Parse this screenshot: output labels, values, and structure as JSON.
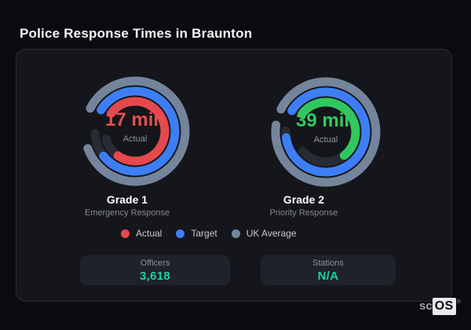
{
  "header": {
    "title": "Police Response Times in Braunton"
  },
  "chart_data": {
    "type": "gauge",
    "title": "Police Response Times in Braunton",
    "units": "minutes",
    "track_color": "#272b33",
    "legend_position": "bottom-center",
    "legend": [
      {
        "label": "Actual",
        "color": "#e5484d"
      },
      {
        "label": "Target",
        "color": "#3d7ef5"
      },
      {
        "label": "UK Average",
        "color": "#74859b"
      }
    ],
    "gauges": [
      {
        "title": "Grade 1",
        "subtitle": "Emergency Response",
        "value": "17 min",
        "value_note": "Actual",
        "value_color": "#e0524f",
        "rings": [
          {
            "name": "UK Average",
            "color": "#74859b",
            "radius": 64,
            "start": 297,
            "sweep": 313,
            "track_sweep": 313
          },
          {
            "name": "Target",
            "color": "#3d7ef5",
            "radius": 51,
            "start": 302,
            "sweep": 290,
            "track_sweep": 325
          },
          {
            "name": "Actual",
            "color": "#e5484d",
            "radius": 38,
            "start": 307,
            "sweep": 268,
            "track_sweep": 308
          }
        ]
      },
      {
        "title": "Grade 2",
        "subtitle": "Priority Response",
        "value": "39 min",
        "value_note": "Actual",
        "value_color": "#32ca61",
        "rings": [
          {
            "name": "UK Average",
            "color": "#74859b",
            "radius": 64,
            "start": 297,
            "sweep": 341,
            "track_sweep": 341
          },
          {
            "name": "Target",
            "color": "#3d7ef5",
            "radius": 51,
            "start": 302,
            "sweep": 320,
            "track_sweep": 330
          },
          {
            "name": "Actual",
            "color": "#30c85e",
            "radius": 38,
            "start": 307,
            "sweep": 195,
            "track_sweep": 283
          }
        ]
      }
    ]
  },
  "stats": [
    {
      "label": "Officers",
      "value": "3,618"
    },
    {
      "label": "Stations",
      "value": "N/A"
    }
  ],
  "stats_value_color": "#1bd3a5",
  "logo": {
    "prefix": "sc",
    "suffix": "OS",
    "registered": "®"
  }
}
